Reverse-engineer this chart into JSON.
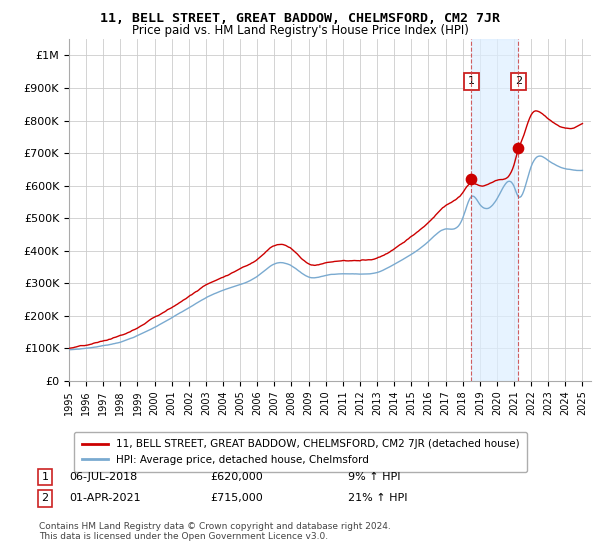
{
  "title": "11, BELL STREET, GREAT BADDOW, CHELMSFORD, CM2 7JR",
  "subtitle": "Price paid vs. HM Land Registry's House Price Index (HPI)",
  "legend_label_red": "11, BELL STREET, GREAT BADDOW, CHELMSFORD, CM2 7JR (detached house)",
  "legend_label_blue": "HPI: Average price, detached house, Chelmsford",
  "annotation1_date": "06-JUL-2018",
  "annotation1_price": "£620,000",
  "annotation1_hpi": "9% ↑ HPI",
  "annotation2_date": "01-APR-2021",
  "annotation2_price": "£715,000",
  "annotation2_hpi": "21% ↑ HPI",
  "footnote": "Contains HM Land Registry data © Crown copyright and database right 2024.\nThis data is licensed under the Open Government Licence v3.0.",
  "red_color": "#cc0000",
  "blue_color": "#7aaad0",
  "dot_color": "#cc0000",
  "annotation_line_color": "#cc4444",
  "shade_color": "#ddeeff",
  "background_color": "#ffffff",
  "grid_color": "#cccccc",
  "ylim": [
    0,
    1050000
  ],
  "yticks": [
    0,
    100000,
    200000,
    300000,
    400000,
    500000,
    600000,
    700000,
    800000,
    900000,
    1000000
  ],
  "ytick_labels": [
    "£0",
    "£100K",
    "£200K",
    "£300K",
    "£400K",
    "£500K",
    "£600K",
    "£700K",
    "£800K",
    "£900K",
    "£1M"
  ],
  "sale1_year": 2018.5,
  "sale1_price": 620000,
  "sale2_year": 2021.25,
  "sale2_price": 715000
}
